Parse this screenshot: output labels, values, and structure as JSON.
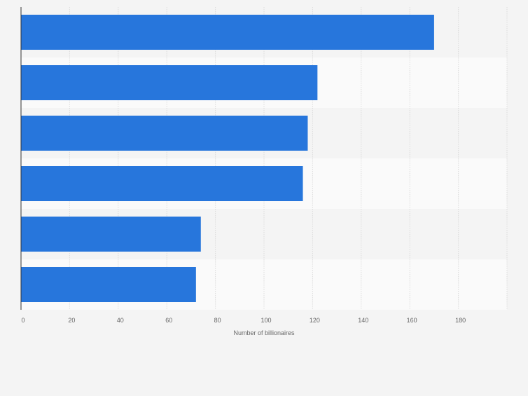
{
  "chart_data": {
    "type": "bar",
    "orientation": "horizontal",
    "categories": [
      "",
      "",
      "",
      "",
      "",
      ""
    ],
    "values": [
      170,
      122,
      118,
      116,
      74,
      72
    ],
    "title": "",
    "xlabel": "Number of billionaires",
    "ylabel": "",
    "xlim": [
      0,
      200
    ],
    "xticks": [
      0,
      20,
      40,
      60,
      80,
      100,
      120,
      140,
      160,
      180
    ],
    "grid": true,
    "bar_color": "#2776dc",
    "band_colors": [
      "#f4f4f4",
      "#fafafa"
    ]
  }
}
